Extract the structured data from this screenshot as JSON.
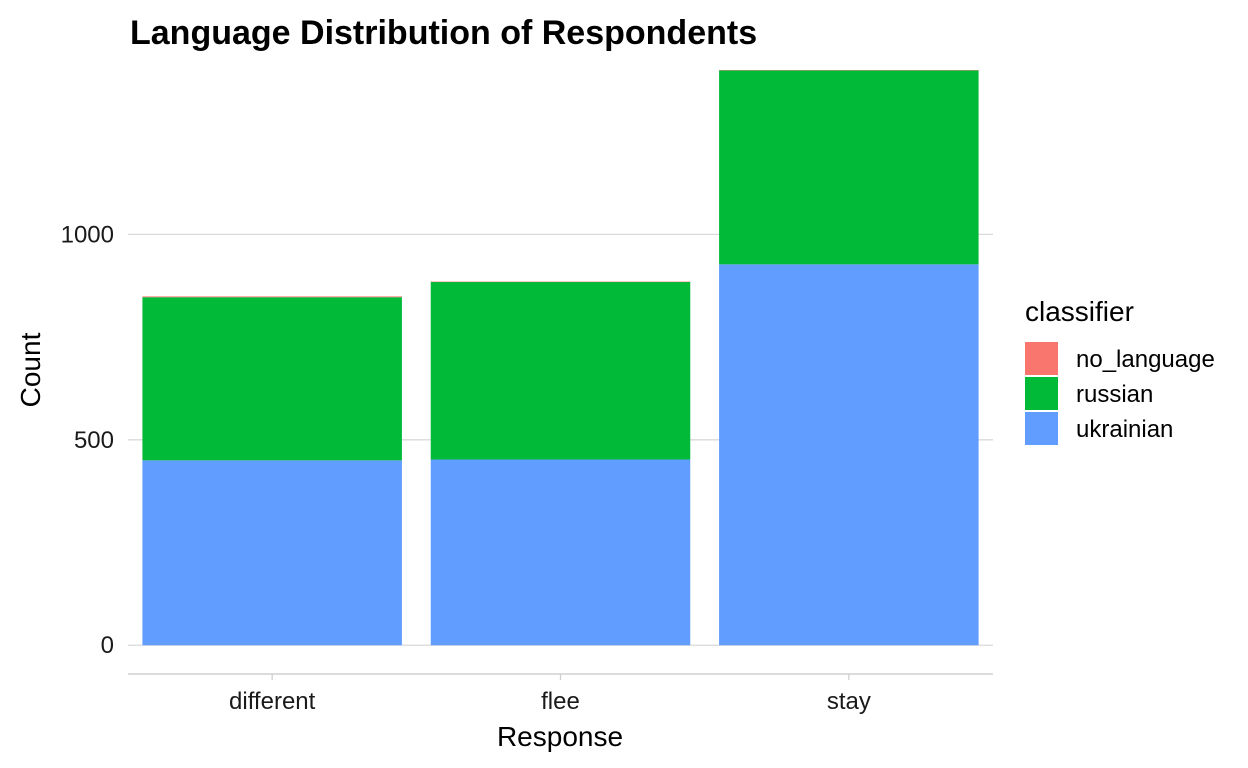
{
  "chart_data": {
    "type": "bar",
    "stacked": true,
    "title": "Language Distribution of Respondents",
    "xlabel": "Response",
    "ylabel": "Count",
    "categories": [
      "different",
      "flee",
      "stay"
    ],
    "series": [
      {
        "name": "no_language",
        "color": "#F8766D",
        "values": [
          2,
          1,
          1
        ]
      },
      {
        "name": "russian",
        "color": "#00BA38",
        "values": [
          397,
          432,
          472
        ]
      },
      {
        "name": "ukrainian",
        "color": "#619CFF",
        "values": [
          450,
          452,
          927
        ]
      }
    ],
    "ylim": [
      -70,
      1400
    ],
    "yticks": [
      0,
      500,
      1000
    ],
    "grid": true,
    "legend": {
      "title": "classifier",
      "placement": "right"
    }
  }
}
